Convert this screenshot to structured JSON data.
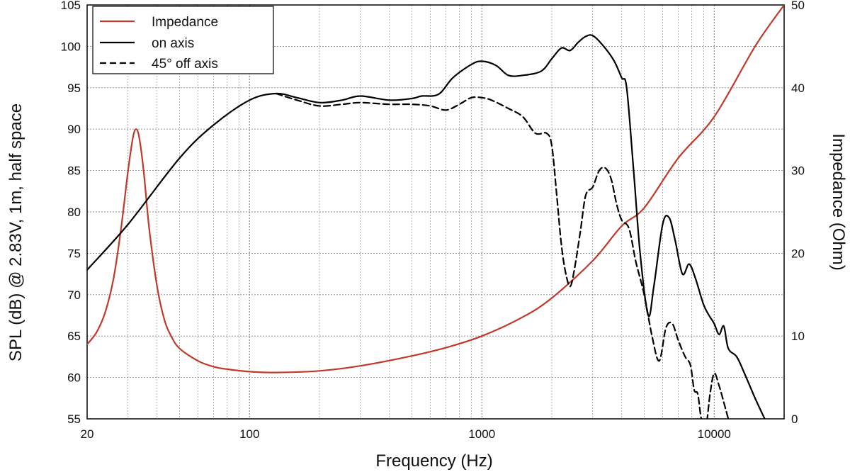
{
  "chart_data": {
    "type": "line",
    "xlabel": "Frequency (Hz)",
    "ylabel": "SPL (dB) @ 2.83V, 1m, half space",
    "y2label": "Impedance (Ohm)",
    "xscale": "log",
    "xlim": [
      20,
      20000
    ],
    "ylim": [
      55,
      105
    ],
    "y2lim": [
      0,
      50
    ],
    "grid": true,
    "legend": "top-left",
    "x_ticks": [
      {
        "value": 20,
        "label": "20"
      },
      {
        "value": 100,
        "label": "100"
      },
      {
        "value": 1000,
        "label": "1000"
      },
      {
        "value": 10000,
        "label": "10000"
      }
    ],
    "y_ticks": [
      55,
      60,
      65,
      70,
      75,
      80,
      85,
      90,
      95,
      100,
      105
    ],
    "y2_ticks": [
      0,
      10,
      20,
      30,
      40,
      50
    ],
    "series": [
      {
        "name": "Impedance",
        "axis": "right",
        "color": "#c0392b",
        "dash": "solid",
        "points": [
          [
            20,
            9
          ],
          [
            22,
            10.5
          ],
          [
            24,
            13
          ],
          [
            26,
            17
          ],
          [
            28,
            23
          ],
          [
            30,
            30
          ],
          [
            31.5,
            34
          ],
          [
            32.5,
            35
          ],
          [
            33.5,
            34
          ],
          [
            35,
            30
          ],
          [
            37,
            23
          ],
          [
            40,
            16
          ],
          [
            43,
            12
          ],
          [
            46,
            10
          ],
          [
            50,
            8.5
          ],
          [
            60,
            7
          ],
          [
            70,
            6.3
          ],
          [
            80,
            6
          ],
          [
            100,
            5.7
          ],
          [
            130,
            5.6
          ],
          [
            200,
            5.8
          ],
          [
            300,
            6.4
          ],
          [
            500,
            7.6
          ],
          [
            700,
            8.6
          ],
          [
            1000,
            10
          ],
          [
            1500,
            12.3
          ],
          [
            2000,
            14.6
          ],
          [
            3000,
            19.1
          ],
          [
            4000,
            23.3
          ],
          [
            5000,
            25.5
          ],
          [
            7000,
            31.5
          ],
          [
            10000,
            36.5
          ],
          [
            15000,
            45
          ],
          [
            20000,
            50
          ]
        ]
      },
      {
        "name": "on axis",
        "axis": "left",
        "color": "#000000",
        "dash": "solid",
        "points": [
          [
            20,
            73
          ],
          [
            30,
            78.5
          ],
          [
            50,
            86.5
          ],
          [
            70,
            90.5
          ],
          [
            100,
            93.5
          ],
          [
            130,
            94.3
          ],
          [
            160,
            93.8
          ],
          [
            200,
            93.2
          ],
          [
            250,
            93.5
          ],
          [
            300,
            94
          ],
          [
            400,
            93.5
          ],
          [
            500,
            93.7
          ],
          [
            550,
            94
          ],
          [
            650,
            94.2
          ],
          [
            750,
            96.2
          ],
          [
            900,
            97.8
          ],
          [
            1000,
            98.2
          ],
          [
            1150,
            97.7
          ],
          [
            1300,
            96.5
          ],
          [
            1500,
            96.5
          ],
          [
            1800,
            97
          ],
          [
            2000,
            98.5
          ],
          [
            2200,
            99.8
          ],
          [
            2400,
            99.5
          ],
          [
            2600,
            100.5
          ],
          [
            2800,
            101.2
          ],
          [
            3000,
            101.3
          ],
          [
            3300,
            100.2
          ],
          [
            3700,
            98.3
          ],
          [
            4000,
            96.2
          ],
          [
            4200,
            95
          ],
          [
            4500,
            85
          ],
          [
            4800,
            75
          ],
          [
            5200,
            67.5
          ],
          [
            5500,
            71
          ],
          [
            6000,
            78.5
          ],
          [
            6400,
            79.3
          ],
          [
            6800,
            76.5
          ],
          [
            7300,
            72.5
          ],
          [
            7800,
            73.7
          ],
          [
            8300,
            72
          ],
          [
            9000,
            68.8
          ],
          [
            9500,
            67.5
          ],
          [
            10000,
            66.5
          ],
          [
            10500,
            65.2
          ],
          [
            11000,
            66.2
          ],
          [
            11500,
            63.5
          ],
          [
            12500,
            62.5
          ],
          [
            13500,
            60.5
          ],
          [
            15000,
            57.5
          ],
          [
            16500,
            55
          ]
        ]
      },
      {
        "name": "45° off axis",
        "axis": "left",
        "color": "#000000",
        "dash": "dashed",
        "points": [
          [
            130,
            94.3
          ],
          [
            160,
            93.5
          ],
          [
            200,
            92.8
          ],
          [
            250,
            93
          ],
          [
            300,
            93.2
          ],
          [
            400,
            93
          ],
          [
            500,
            93
          ],
          [
            600,
            92.8
          ],
          [
            700,
            92.3
          ],
          [
            800,
            93
          ],
          [
            900,
            93.8
          ],
          [
            1000,
            93.8
          ],
          [
            1100,
            93.5
          ],
          [
            1300,
            92.5
          ],
          [
            1500,
            91.5
          ],
          [
            1700,
            89.5
          ],
          [
            1900,
            89.5
          ],
          [
            2000,
            88
          ],
          [
            2100,
            82
          ],
          [
            2200,
            76
          ],
          [
            2300,
            72.5
          ],
          [
            2400,
            71
          ],
          [
            2500,
            73
          ],
          [
            2650,
            77.5
          ],
          [
            2800,
            82
          ],
          [
            3000,
            83
          ],
          [
            3200,
            85
          ],
          [
            3400,
            85.3
          ],
          [
            3600,
            84
          ],
          [
            3800,
            81
          ],
          [
            4000,
            79
          ],
          [
            4300,
            78
          ],
          [
            4600,
            74
          ],
          [
            5000,
            70
          ],
          [
            5400,
            65
          ],
          [
            5800,
            62
          ],
          [
            6200,
            66
          ],
          [
            6600,
            66.5
          ],
          [
            7000,
            64.5
          ],
          [
            7500,
            62.5
          ],
          [
            7900,
            61.5
          ],
          [
            8200,
            58.5
          ],
          [
            8500,
            58
          ],
          [
            8800,
            55
          ],
          [
            9200,
            54
          ],
          [
            9600,
            58
          ],
          [
            10000,
            60.5
          ],
          [
            10500,
            59
          ],
          [
            11000,
            57
          ],
          [
            11500,
            55
          ]
        ]
      }
    ]
  }
}
